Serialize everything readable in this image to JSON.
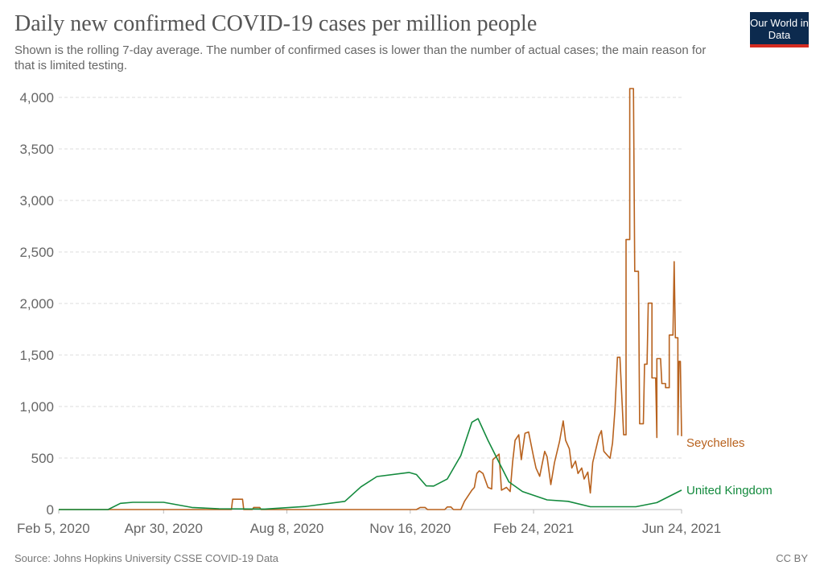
{
  "header": {
    "title": "Daily new confirmed COVID-19 cases per million people",
    "subtitle": "Shown is the rolling 7-day average. The number of confirmed cases is lower than the number of actual cases; the main reason for that is limited testing.",
    "logo_text": "Our World in Data"
  },
  "footer": {
    "source": "Source: Johns Hopkins University CSSE COVID-19 Data",
    "license": "CC BY"
  },
  "chart_data": {
    "type": "line",
    "title": "Daily new confirmed COVID-19 cases per million people",
    "xlabel": "",
    "ylabel": "",
    "x_unit": "days since Feb 5, 2020",
    "xlim": [
      0,
      505
    ],
    "ylim": [
      0,
      4000
    ],
    "y_ticks": [
      0,
      500,
      1000,
      1500,
      2000,
      2500,
      3000,
      3500,
      4000
    ],
    "y_tick_labels": [
      "0",
      "500",
      "1,000",
      "1,500",
      "2,000",
      "2,500",
      "3,000",
      "3,500",
      "4,000"
    ],
    "x_ticks": [
      0,
      85,
      185,
      285,
      385,
      505
    ],
    "x_tick_labels": [
      "Feb 5, 2020",
      "Apr 30, 2020",
      "Aug 8, 2020",
      "Nov 16, 2020",
      "Feb 24, 2021",
      "Jun 24, 2021"
    ],
    "grid": "horizontal-dashed",
    "legend": "inline-right",
    "series": [
      {
        "name": "Seychelles",
        "color": "#b8621e",
        "points": [
          [
            0,
            0
          ],
          [
            140,
            0
          ],
          [
            141,
            100
          ],
          [
            149,
            100
          ],
          [
            150,
            0
          ],
          [
            157,
            0
          ],
          [
            158,
            20
          ],
          [
            163,
            20
          ],
          [
            164,
            0
          ],
          [
            290,
            0
          ],
          [
            293,
            20
          ],
          [
            297,
            20
          ],
          [
            299,
            0
          ],
          [
            313,
            0
          ],
          [
            315,
            25
          ],
          [
            318,
            25
          ],
          [
            320,
            0
          ],
          [
            326,
            0
          ],
          [
            329,
            80
          ],
          [
            335,
            188
          ],
          [
            337,
            215
          ],
          [
            339,
            350
          ],
          [
            341,
            376
          ],
          [
            344,
            350
          ],
          [
            348,
            215
          ],
          [
            351,
            200
          ],
          [
            352,
            484
          ],
          [
            357,
            538
          ],
          [
            359,
            188
          ],
          [
            363,
            215
          ],
          [
            366,
            175
          ],
          [
            368,
            457
          ],
          [
            370,
            672
          ],
          [
            373,
            726
          ],
          [
            375,
            484
          ],
          [
            378,
            740
          ],
          [
            381,
            753
          ],
          [
            385,
            511
          ],
          [
            387,
            403
          ],
          [
            390,
            323
          ],
          [
            394,
            565
          ],
          [
            396,
            511
          ],
          [
            399,
            242
          ],
          [
            402,
            457
          ],
          [
            406,
            659
          ],
          [
            409,
            860
          ],
          [
            411,
            672
          ],
          [
            414,
            591
          ],
          [
            416,
            403
          ],
          [
            419,
            470
          ],
          [
            421,
            350
          ],
          [
            424,
            403
          ],
          [
            426,
            296
          ],
          [
            429,
            363
          ],
          [
            431,
            161
          ],
          [
            433,
            457
          ],
          [
            438,
            712
          ],
          [
            440,
            766
          ],
          [
            442,
            565
          ],
          [
            447,
            497
          ],
          [
            449,
            645
          ],
          [
            451,
            968
          ],
          [
            453,
            1478
          ],
          [
            455,
            1478
          ],
          [
            458,
            726
          ],
          [
            460,
            726
          ],
          [
            460,
            2620
          ],
          [
            463,
            2620
          ],
          [
            463,
            4086
          ],
          [
            466,
            4086
          ],
          [
            467,
            2312
          ],
          [
            470,
            2312
          ],
          [
            471,
            833
          ],
          [
            474,
            833
          ],
          [
            475,
            1411
          ],
          [
            477,
            1411
          ],
          [
            478,
            2003
          ],
          [
            481,
            2003
          ],
          [
            481,
            1277
          ],
          [
            484,
            1277
          ],
          [
            485,
            699
          ],
          [
            485,
            1465
          ],
          [
            488,
            1465
          ],
          [
            489,
            1223
          ],
          [
            492,
            1223
          ],
          [
            492,
            1183
          ],
          [
            495,
            1183
          ],
          [
            495,
            1694
          ],
          [
            498,
            1694
          ],
          [
            499,
            2406
          ],
          [
            500,
            1667
          ],
          [
            502,
            1667
          ],
          [
            502,
            726
          ],
          [
            503,
            1438
          ],
          [
            504,
            1438
          ],
          [
            505,
            712
          ]
        ]
      },
      {
        "name": "United Kingdom",
        "color": "#138a3d",
        "points": [
          [
            0,
            0
          ],
          [
            40,
            0
          ],
          [
            50,
            60
          ],
          [
            60,
            70
          ],
          [
            85,
            70
          ],
          [
            108,
            20
          ],
          [
            130,
            8
          ],
          [
            167,
            5
          ],
          [
            200,
            30
          ],
          [
            232,
            80
          ],
          [
            245,
            220
          ],
          [
            258,
            320
          ],
          [
            284,
            360
          ],
          [
            290,
            340
          ],
          [
            298,
            230
          ],
          [
            304,
            228
          ],
          [
            315,
            296
          ],
          [
            326,
            524
          ],
          [
            335,
            847
          ],
          [
            340,
            882
          ],
          [
            348,
            672
          ],
          [
            357,
            457
          ],
          [
            365,
            269
          ],
          [
            376,
            175
          ],
          [
            396,
            94
          ],
          [
            413,
            80
          ],
          [
            431,
            27
          ],
          [
            468,
            27
          ],
          [
            485,
            67
          ],
          [
            505,
            188
          ]
        ]
      }
    ]
  }
}
